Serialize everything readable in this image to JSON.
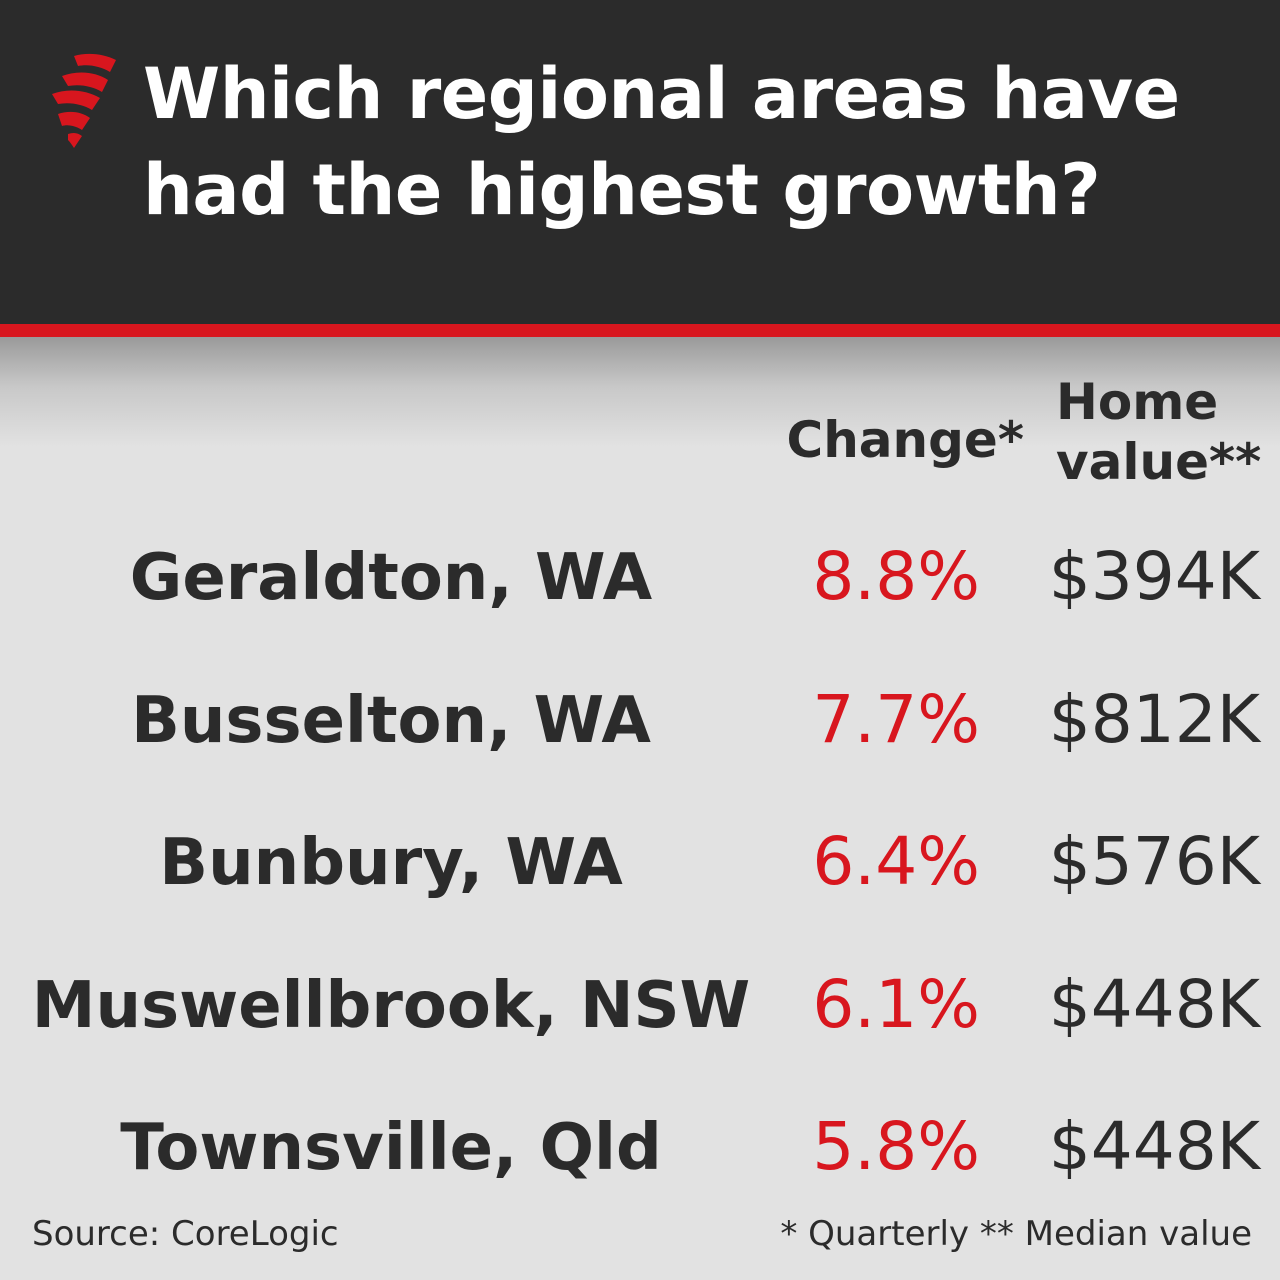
{
  "title": "Which regional areas have had the highest growth?",
  "logo_icon": "sbs-flame-logo-icon",
  "colors": {
    "header_bg": "#2b2b2b",
    "accent_red": "#d8161e",
    "body_bg": "#e2e2e2",
    "text_dark": "#2b2b2b"
  },
  "columns": {
    "change": "Change*",
    "home_value": "Home value**"
  },
  "source": "Source: CoreLogic",
  "footnote": "* Quarterly ** Median value",
  "chart_data": {
    "type": "table",
    "title": "Which regional areas have had the highest growth?",
    "columns": [
      "",
      "Change*",
      "Home value**"
    ],
    "rows": [
      {
        "area": "Geraldton, WA",
        "change": "8.8%",
        "change_pct": 8.8,
        "home_value": "$394K",
        "home_value_k": 394
      },
      {
        "area": "Busselton, WA",
        "change": "7.7%",
        "change_pct": 7.7,
        "home_value": "$812K",
        "home_value_k": 812
      },
      {
        "area": "Bunbury, WA",
        "change": "6.4%",
        "change_pct": 6.4,
        "home_value": "$576K",
        "home_value_k": 576
      },
      {
        "area": "Muswellbrook, NSW",
        "change": "6.1%",
        "change_pct": 6.1,
        "home_value": "$448K",
        "home_value_k": 448
      },
      {
        "area": "Townsville, Qld",
        "change": "5.8%",
        "change_pct": 5.8,
        "home_value": "$448K",
        "home_value_k": 448
      }
    ]
  }
}
